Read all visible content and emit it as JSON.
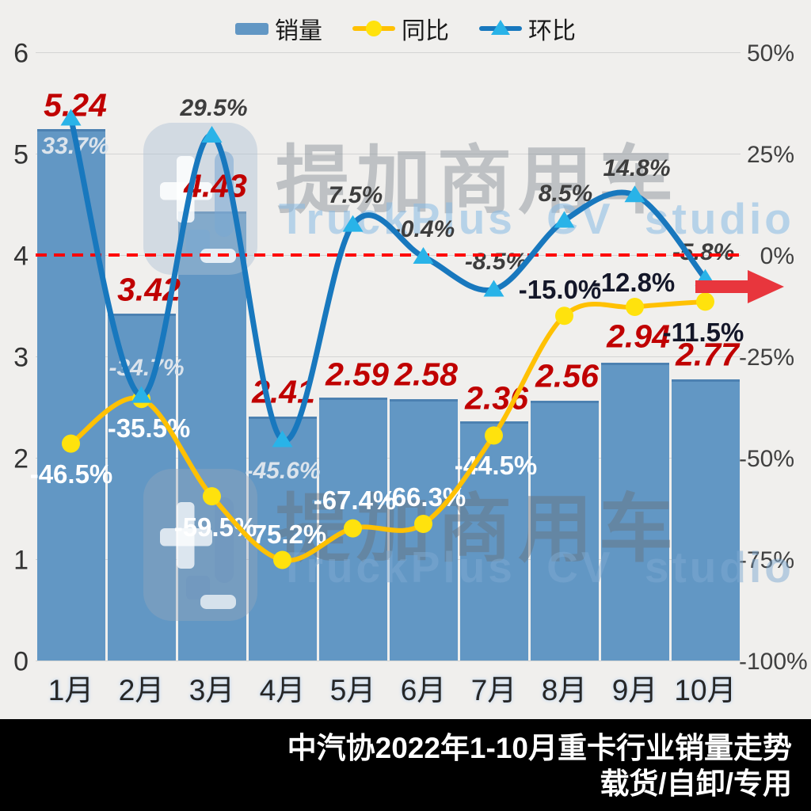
{
  "legend": {
    "sales": "销量",
    "yoy": "同比",
    "mom": "环比"
  },
  "watermark": {
    "cn": "提加商用车",
    "en": "TruckPlus CV studio"
  },
  "footer": {
    "line1": "中汽协2022年1-10月重卡行业销量走势",
    "line2": "载货/自卸/专用"
  },
  "colors": {
    "background": "#f0efed",
    "bar": "#6297c4",
    "yoy_line": "#ffc103",
    "yoy_marker": "#ffe20d",
    "mom_line": "#1878be",
    "mom_marker": "#29b3e8",
    "bar_label": "#c00000",
    "zero_line": "#ff0000",
    "trend_arrow": "#e8363d",
    "footer_bg": "#000000"
  },
  "chart_data": {
    "type": "bar",
    "subtype": "combo-bar-line",
    "title": "中汽协2022年1-10月重卡行业销量走势",
    "subtitle": "载货/自卸/专用",
    "categories": [
      "1月",
      "2月",
      "3月",
      "4月",
      "5月",
      "6月",
      "7月",
      "8月",
      "9月",
      "10月"
    ],
    "series": [
      {
        "name": "销量",
        "type": "bar",
        "axis": "left",
        "values": [
          5.24,
          3.42,
          4.43,
          2.41,
          2.59,
          2.58,
          2.36,
          2.56,
          2.94,
          2.77
        ]
      },
      {
        "name": "同比",
        "type": "line",
        "axis": "right",
        "unit": "%",
        "marker": "circle",
        "values": [
          -46.5,
          -35.5,
          -59.5,
          -75.2,
          -67.4,
          -66.3,
          -44.5,
          -15.0,
          -12.8,
          -11.5
        ]
      },
      {
        "name": "环比",
        "type": "line",
        "axis": "right",
        "unit": "%",
        "marker": "triangle",
        "values": [
          33.7,
          -34.7,
          29.5,
          -45.6,
          7.5,
          -0.4,
          -8.5,
          8.5,
          14.8,
          -5.8
        ]
      }
    ],
    "left_axis": {
      "ticks": [
        6,
        5,
        4,
        3,
        2,
        1,
        0
      ],
      "range": [
        0,
        6
      ]
    },
    "right_axis": {
      "ticks": [
        "50%",
        "25%",
        "0%",
        "-25%",
        "-50%",
        "-75%",
        "-100%"
      ],
      "range": [
        -100,
        50
      ]
    },
    "zero_line": {
      "value_right_axis": 0,
      "style": "dashed",
      "color": "#ff0000"
    },
    "annotations": {
      "trend_arrow": "red arrow pointing right at 0% level, far right"
    },
    "grid": true,
    "legend_position": "top-center"
  }
}
